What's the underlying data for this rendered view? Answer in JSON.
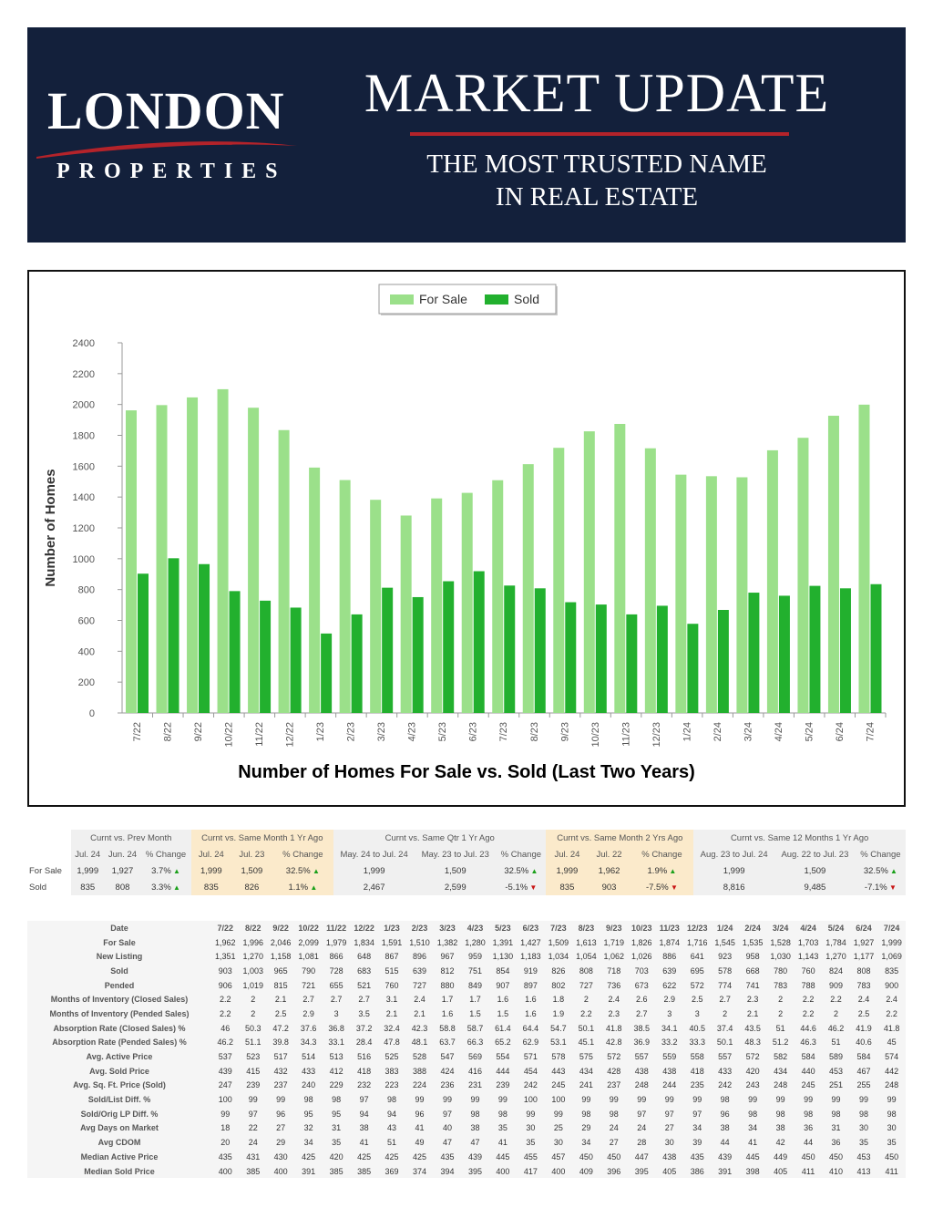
{
  "banner": {
    "logo_main": "LONDON",
    "logo_sub": "PROPERTIES",
    "title": "MARKET UPDATE",
    "tagline_1": "THE MOST TRUSTED NAME",
    "tagline_2": "IN REAL ESTATE",
    "background_color": "#13203b",
    "accent_color": "#b4232a"
  },
  "chart_data": {
    "type": "bar",
    "title": "Number of Homes For Sale vs. Sold (Last Two Years)",
    "xlabel": "",
    "ylabel": "Number of Homes",
    "ylim": [
      0,
      2400
    ],
    "yticks": [
      0,
      200,
      400,
      600,
      800,
      1000,
      1200,
      1400,
      1600,
      1800,
      2000,
      2200,
      2400
    ],
    "grid": false,
    "legend": "top-center",
    "categories": [
      "7/22",
      "8/22",
      "9/22",
      "10/22",
      "11/22",
      "12/22",
      "1/23",
      "2/23",
      "3/23",
      "4/23",
      "5/23",
      "6/23",
      "7/23",
      "8/23",
      "9/23",
      "10/23",
      "11/23",
      "12/23",
      "1/24",
      "2/24",
      "3/24",
      "4/24",
      "5/24",
      "6/24",
      "7/24"
    ],
    "series": [
      {
        "name": "For Sale",
        "color": "#9be08a",
        "values": [
          1962,
          1996,
          2046,
          2099,
          1979,
          1834,
          1591,
          1510,
          1382,
          1280,
          1391,
          1427,
          1509,
          1613,
          1719,
          1826,
          1874,
          1716,
          1545,
          1535,
          1528,
          1703,
          1784,
          1927,
          1999
        ]
      },
      {
        "name": "Sold",
        "color": "#22b02e",
        "values": [
          903,
          1003,
          965,
          790,
          728,
          683,
          515,
          639,
          812,
          751,
          854,
          919,
          826,
          808,
          718,
          703,
          639,
          695,
          578,
          668,
          780,
          760,
          824,
          808,
          835
        ]
      }
    ]
  },
  "comparison": {
    "groups": [
      "Curnt vs. Prev Month",
      "Curnt vs. Same Month 1 Yr Ago",
      "Curnt vs. Same Qtr 1 Yr Ago",
      "Curnt vs. Same Month 2 Yrs Ago",
      "Curnt vs. Same 12 Months 1 Yr Ago"
    ],
    "headers": [
      "Jul. 24",
      "Jun. 24",
      "% Change",
      "Jul. 24",
      "Jul. 23",
      "% Change",
      "May. 24 to Jul. 24",
      "May. 23 to Jul. 23",
      "% Change",
      "Jul. 24",
      "Jul. 22",
      "% Change",
      "Aug. 23 to Jul. 24",
      "Aug. 22 to Jul. 23",
      "% Change"
    ],
    "rows": [
      {
        "label": "For Sale",
        "cells": [
          "1,999",
          "1,927",
          "3.7%",
          "1,999",
          "1,509",
          "32.5%",
          "1,999",
          "1,509",
          "32.5%",
          "1,999",
          "1,962",
          "1.9%",
          "1,999",
          "1,509",
          "32.5%"
        ],
        "dirs": [
          "up",
          "up",
          "up",
          "up",
          "up"
        ]
      },
      {
        "label": "Sold",
        "cells": [
          "835",
          "808",
          "3.3%",
          "835",
          "826",
          "1.1%",
          "2,467",
          "2,599",
          "-5.1%",
          "835",
          "903",
          "-7.5%",
          "8,816",
          "9,485",
          "-7.1%"
        ],
        "dirs": [
          "up",
          "up",
          "down",
          "down",
          "down"
        ]
      }
    ],
    "up_color": "#1aa01a",
    "down_color": "#c81414"
  },
  "datatable": {
    "date_label": "Date",
    "dates": [
      "7/22",
      "8/22",
      "9/22",
      "10/22",
      "11/22",
      "12/22",
      "1/23",
      "2/23",
      "3/23",
      "4/23",
      "5/23",
      "6/23",
      "7/23",
      "8/23",
      "9/23",
      "10/23",
      "11/23",
      "12/23",
      "1/24",
      "2/24",
      "3/24",
      "4/24",
      "5/24",
      "6/24",
      "7/24"
    ],
    "rows": [
      {
        "label": "For Sale",
        "values": [
          "1,962",
          "1,996",
          "2,046",
          "2,099",
          "1,979",
          "1,834",
          "1,591",
          "1,510",
          "1,382",
          "1,280",
          "1,391",
          "1,427",
          "1,509",
          "1,613",
          "1,719",
          "1,826",
          "1,874",
          "1,716",
          "1,545",
          "1,535",
          "1,528",
          "1,703",
          "1,784",
          "1,927",
          "1,999"
        ]
      },
      {
        "label": "New Listing",
        "values": [
          "1,351",
          "1,270",
          "1,158",
          "1,081",
          "866",
          "648",
          "867",
          "896",
          "967",
          "959",
          "1,130",
          "1,183",
          "1,034",
          "1,054",
          "1,062",
          "1,026",
          "886",
          "641",
          "923",
          "958",
          "1,030",
          "1,143",
          "1,270",
          "1,177",
          "1,069"
        ]
      },
      {
        "label": "Sold",
        "values": [
          "903",
          "1,003",
          "965",
          "790",
          "728",
          "683",
          "515",
          "639",
          "812",
          "751",
          "854",
          "919",
          "826",
          "808",
          "718",
          "703",
          "639",
          "695",
          "578",
          "668",
          "780",
          "760",
          "824",
          "808",
          "835"
        ]
      },
      {
        "label": "Pended",
        "values": [
          "906",
          "1,019",
          "815",
          "721",
          "655",
          "521",
          "760",
          "727",
          "880",
          "849",
          "907",
          "897",
          "802",
          "727",
          "736",
          "673",
          "622",
          "572",
          "774",
          "741",
          "783",
          "788",
          "909",
          "783",
          "900"
        ]
      },
      {
        "label": "Months of Inventory (Closed Sales)",
        "values": [
          "2.2",
          "2",
          "2.1",
          "2.7",
          "2.7",
          "2.7",
          "3.1",
          "2.4",
          "1.7",
          "1.7",
          "1.6",
          "1.6",
          "1.8",
          "2",
          "2.4",
          "2.6",
          "2.9",
          "2.5",
          "2.7",
          "2.3",
          "2",
          "2.2",
          "2.2",
          "2.4",
          "2.4"
        ]
      },
      {
        "label": "Months of Inventory (Pended Sales)",
        "values": [
          "2.2",
          "2",
          "2.5",
          "2.9",
          "3",
          "3.5",
          "2.1",
          "2.1",
          "1.6",
          "1.5",
          "1.5",
          "1.6",
          "1.9",
          "2.2",
          "2.3",
          "2.7",
          "3",
          "3",
          "2",
          "2.1",
          "2",
          "2.2",
          "2",
          "2.5",
          "2.2"
        ]
      },
      {
        "label": "Absorption Rate (Closed Sales) %",
        "values": [
          "46",
          "50.3",
          "47.2",
          "37.6",
          "36.8",
          "37.2",
          "32.4",
          "42.3",
          "58.8",
          "58.7",
          "61.4",
          "64.4",
          "54.7",
          "50.1",
          "41.8",
          "38.5",
          "34.1",
          "40.5",
          "37.4",
          "43.5",
          "51",
          "44.6",
          "46.2",
          "41.9",
          "41.8"
        ]
      },
      {
        "label": "Absorption Rate (Pended Sales) %",
        "values": [
          "46.2",
          "51.1",
          "39.8",
          "34.3",
          "33.1",
          "28.4",
          "47.8",
          "48.1",
          "63.7",
          "66.3",
          "65.2",
          "62.9",
          "53.1",
          "45.1",
          "42.8",
          "36.9",
          "33.2",
          "33.3",
          "50.1",
          "48.3",
          "51.2",
          "46.3",
          "51",
          "40.6",
          "45"
        ]
      },
      {
        "label": "Avg. Active Price",
        "values": [
          "537",
          "523",
          "517",
          "514",
          "513",
          "516",
          "525",
          "528",
          "547",
          "569",
          "554",
          "571",
          "578",
          "575",
          "572",
          "557",
          "559",
          "558",
          "557",
          "572",
          "582",
          "584",
          "589",
          "584",
          "574"
        ]
      },
      {
        "label": "Avg. Sold Price",
        "values": [
          "439",
          "415",
          "432",
          "433",
          "412",
          "418",
          "383",
          "388",
          "424",
          "416",
          "444",
          "454",
          "443",
          "434",
          "428",
          "438",
          "438",
          "418",
          "433",
          "420",
          "434",
          "440",
          "453",
          "467",
          "442"
        ]
      },
      {
        "label": "Avg. Sq. Ft. Price (Sold)",
        "values": [
          "247",
          "239",
          "237",
          "240",
          "229",
          "232",
          "223",
          "224",
          "236",
          "231",
          "239",
          "242",
          "245",
          "241",
          "237",
          "248",
          "244",
          "235",
          "242",
          "243",
          "248",
          "245",
          "251",
          "255",
          "248"
        ]
      },
      {
        "label": "Sold/List Diff. %",
        "values": [
          "100",
          "99",
          "99",
          "98",
          "98",
          "97",
          "98",
          "99",
          "99",
          "99",
          "99",
          "100",
          "100",
          "99",
          "99",
          "99",
          "99",
          "99",
          "98",
          "99",
          "99",
          "99",
          "99",
          "99",
          "99"
        ]
      },
      {
        "label": "Sold/Orig LP Diff. %",
        "values": [
          "99",
          "97",
          "96",
          "95",
          "95",
          "94",
          "94",
          "96",
          "97",
          "98",
          "98",
          "99",
          "99",
          "98",
          "98",
          "97",
          "97",
          "97",
          "96",
          "98",
          "98",
          "98",
          "98",
          "98",
          "98"
        ]
      },
      {
        "label": "Avg Days on Market",
        "values": [
          "18",
          "22",
          "27",
          "32",
          "31",
          "38",
          "43",
          "41",
          "40",
          "38",
          "35",
          "30",
          "25",
          "29",
          "24",
          "24",
          "27",
          "34",
          "38",
          "34",
          "38",
          "36",
          "31",
          "30",
          "30"
        ]
      },
      {
        "label": "Avg CDOM",
        "values": [
          "20",
          "24",
          "29",
          "34",
          "35",
          "41",
          "51",
          "49",
          "47",
          "47",
          "41",
          "35",
          "30",
          "34",
          "27",
          "28",
          "30",
          "39",
          "44",
          "41",
          "42",
          "44",
          "36",
          "35",
          "35"
        ]
      },
      {
        "label": "Median Active Price",
        "values": [
          "435",
          "431",
          "430",
          "425",
          "420",
          "425",
          "425",
          "425",
          "435",
          "439",
          "445",
          "455",
          "457",
          "450",
          "450",
          "447",
          "438",
          "435",
          "439",
          "445",
          "449",
          "450",
          "450",
          "453",
          "450"
        ]
      },
      {
        "label": "Median Sold Price",
        "values": [
          "400",
          "385",
          "400",
          "391",
          "385",
          "385",
          "369",
          "374",
          "394",
          "395",
          "400",
          "417",
          "400",
          "409",
          "396",
          "395",
          "405",
          "386",
          "391",
          "398",
          "405",
          "411",
          "410",
          "413",
          "411"
        ]
      }
    ]
  }
}
